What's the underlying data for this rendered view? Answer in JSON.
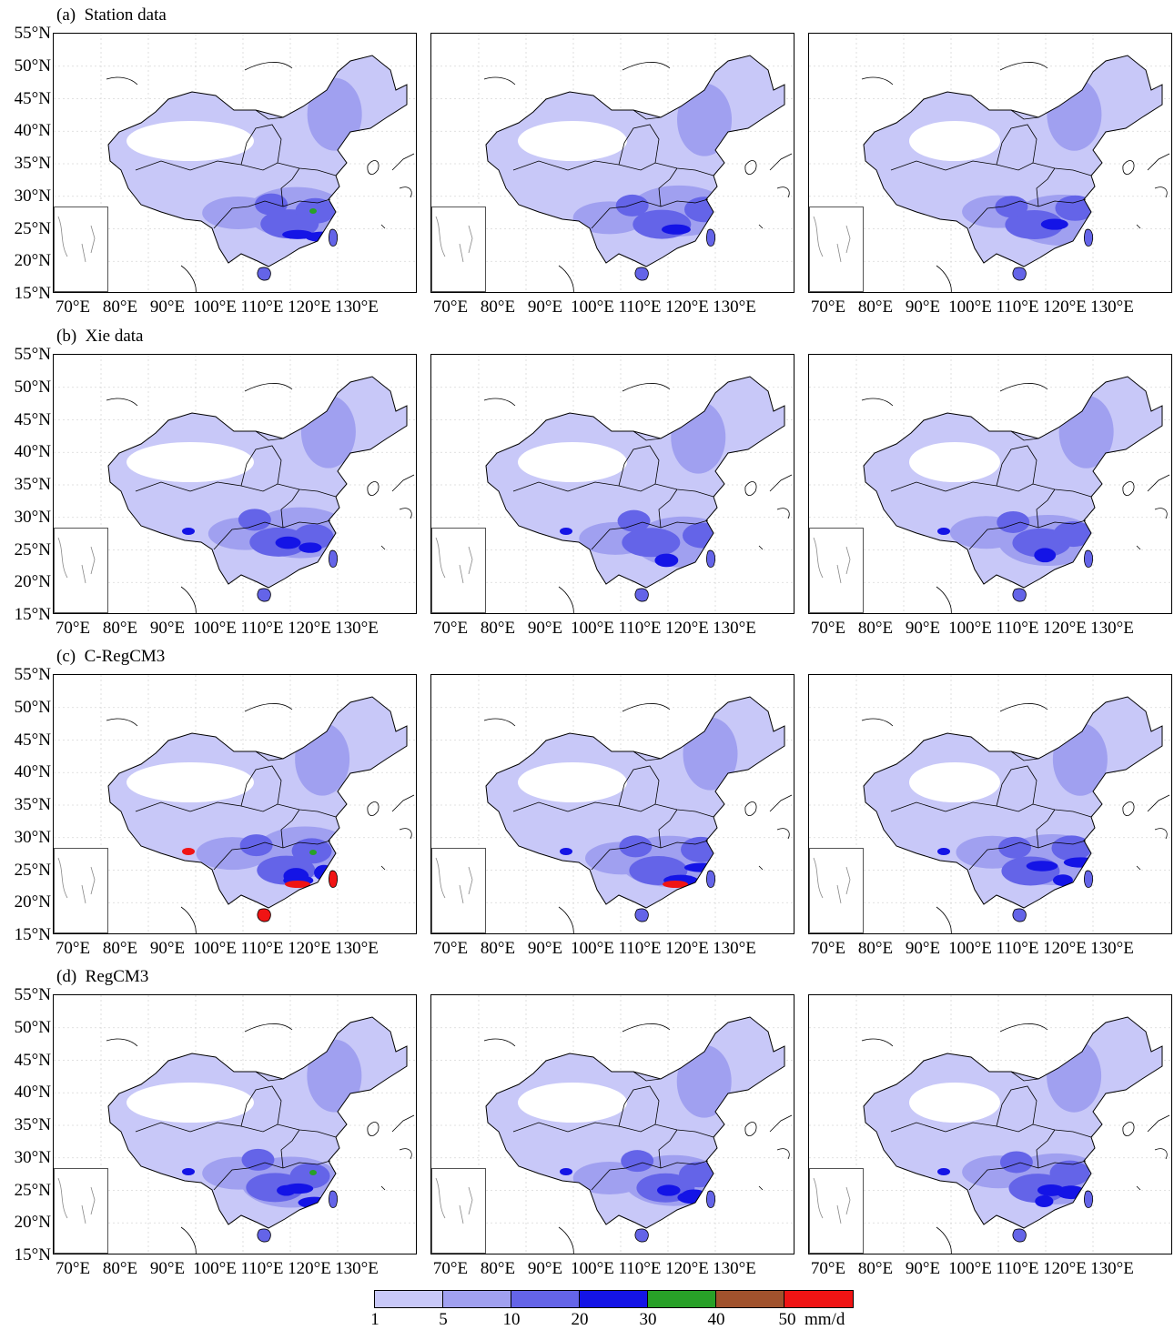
{
  "rows": [
    {
      "title": "(a)  Station data"
    },
    {
      "title": "(b)  Xie data"
    },
    {
      "title": "(c)  C-RegCM3"
    },
    {
      "title": "(d)  RegCM3"
    }
  ],
  "lat_labels": [
    "55°N",
    "50°N",
    "45°N",
    "40°N",
    "35°N",
    "30°N",
    "25°N",
    "20°N",
    "15°N"
  ],
  "lon_labels": [
    "70°E",
    "80°E",
    "90°E",
    "100°E",
    "110°E",
    "120°E",
    "130°E"
  ],
  "legend": {
    "thresholds": [
      "1",
      "5",
      "10",
      "20",
      "30",
      "40",
      "50"
    ],
    "unit": "mm/d",
    "colors": [
      "#c8c8f8",
      "#a0a0f0",
      "#6464e8",
      "#1414e6",
      "#28a028",
      "#a0522d",
      "#f01414"
    ]
  }
}
